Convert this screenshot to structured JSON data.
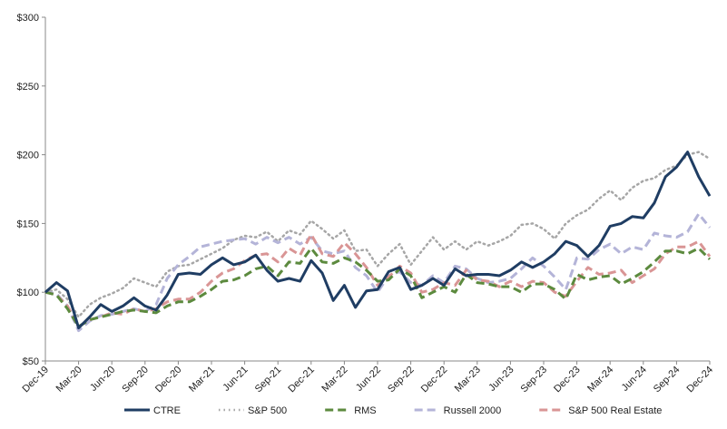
{
  "chart_data": {
    "type": "line",
    "categories": [
      "Dec-19",
      null,
      null,
      "Mar-20",
      null,
      null,
      "Jun-20",
      null,
      null,
      "Sep-20",
      null,
      null,
      "Dec-20",
      null,
      null,
      "Mar-21",
      null,
      null,
      "Jun-21",
      null,
      null,
      "Sep-21",
      null,
      null,
      "Dec-21",
      null,
      null,
      "Mar-22",
      null,
      null,
      "Jun-22",
      null,
      null,
      "Sep-22",
      null,
      null,
      "Dec-22",
      null,
      null,
      "Mar-23",
      null,
      null,
      "Jun-23",
      null,
      null,
      "Sep-23",
      null,
      null,
      "Dec-23",
      null,
      null,
      "Mar-24",
      null,
      null,
      "Jun-24",
      null,
      null,
      "Sep-24",
      null,
      null,
      "Dec-24"
    ],
    "series": [
      {
        "name": "CTRE",
        "color": "#1f3d63",
        "style": "solid",
        "values": [
          100,
          107,
          101,
          74,
          82,
          91,
          86,
          90,
          96,
          90,
          87,
          98,
          113,
          114,
          113,
          120,
          125,
          120,
          122,
          127,
          116,
          108,
          110,
          108,
          123,
          114,
          94,
          105,
          89,
          101,
          102,
          115,
          118,
          102,
          105,
          110,
          105,
          117,
          112,
          113,
          113,
          112,
          116,
          122,
          118,
          122,
          128,
          137,
          134,
          126,
          134,
          148,
          150,
          155,
          154,
          165,
          184,
          191,
          202,
          184,
          170
        ]
      },
      {
        "name": "S&P 500",
        "color": "#a6a6a6",
        "style": "dotted",
        "values": [
          100,
          102,
          95,
          82,
          91,
          96,
          99,
          103,
          110,
          107,
          104,
          115,
          119,
          120,
          124,
          128,
          132,
          138,
          141,
          140,
          144,
          137,
          145,
          142,
          152,
          146,
          139,
          145,
          130,
          131,
          119,
          128,
          135,
          120,
          130,
          140,
          131,
          137,
          131,
          137,
          134,
          137,
          141,
          149,
          150,
          146,
          139,
          150,
          156,
          160,
          168,
          174,
          167,
          176,
          181,
          183,
          189,
          192,
          200,
          202,
          197
        ]
      },
      {
        "name": "RMS",
        "color": "#5c8a3e",
        "style": "dashed",
        "values": [
          100,
          98,
          88,
          75,
          80,
          82,
          84,
          86,
          87,
          86,
          85,
          90,
          93,
          93,
          97,
          102,
          108,
          109,
          112,
          117,
          119,
          112,
          122,
          121,
          132,
          122,
          121,
          125,
          122,
          116,
          108,
          109,
          117,
          112,
          96,
          100,
          104,
          100,
          113,
          107,
          106,
          104,
          104,
          100,
          106,
          106,
          102,
          95,
          113,
          109,
          111,
          112,
          106,
          110,
          115,
          122,
          130,
          130,
          128,
          132,
          124
        ]
      },
      {
        "name": "Russell 2000",
        "color": "#b4b4d8",
        "style": "dashed",
        "values": [
          100,
          99,
          90,
          72,
          79,
          83,
          84,
          86,
          88,
          86,
          91,
          110,
          120,
          126,
          133,
          135,
          137,
          138,
          139,
          135,
          140,
          136,
          140,
          135,
          140,
          130,
          128,
          130,
          118,
          112,
          100,
          112,
          115,
          107,
          105,
          112,
          107,
          119,
          117,
          110,
          107,
          108,
          110,
          117,
          125,
          119,
          111,
          102,
          125,
          124,
          131,
          135,
          128,
          133,
          131,
          143,
          141,
          140,
          144,
          157,
          147
        ]
      },
      {
        "name": "S&P 500 Real Estate",
        "color": "#d99595",
        "style": "dashed",
        "values": [
          100,
          98,
          90,
          75,
          80,
          82,
          85,
          84,
          88,
          86,
          88,
          93,
          95,
          95,
          100,
          108,
          114,
          117,
          123,
          127,
          128,
          122,
          132,
          127,
          142,
          128,
          126,
          136,
          128,
          118,
          105,
          111,
          119,
          114,
          100,
          102,
          107,
          105,
          116,
          109,
          108,
          104,
          108,
          104,
          108,
          107,
          100,
          97,
          108,
          118,
          113,
          114,
          116,
          107,
          112,
          117,
          128,
          133,
          133,
          137,
          126
        ]
      }
    ],
    "ylim": [
      50,
      300
    ],
    "yticks": [
      {
        "value": 50,
        "label": "$50"
      },
      {
        "value": 100,
        "label": "$100"
      },
      {
        "value": 150,
        "label": "$150"
      },
      {
        "value": 200,
        "label": "$200"
      },
      {
        "value": 250,
        "label": "$250"
      },
      {
        "value": 300,
        "label": "$300"
      }
    ],
    "legend": "bottom"
  }
}
